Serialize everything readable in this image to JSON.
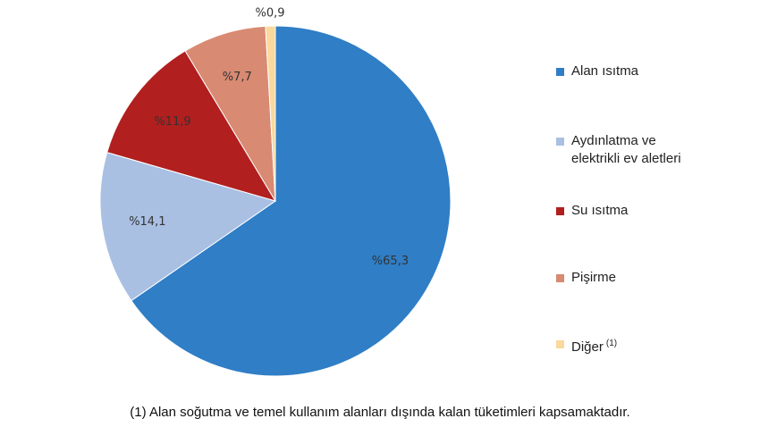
{
  "chart_data": {
    "type": "pie",
    "categories": [
      "Alan ısıtma",
      "Aydınlatma ve elektrikli ev aletleri",
      "Su ısıtma",
      "Pişirme",
      "Diğer"
    ],
    "values": [
      65.3,
      14.1,
      11.9,
      7.7,
      0.9
    ],
    "value_labels": [
      "%65,3",
      "%14,1",
      "%11,9",
      "%7,7",
      "%0,9"
    ],
    "colors": [
      "#2f7ec6",
      "#a9c0e3",
      "#b11f1f",
      "#d98a72",
      "#fbd89c"
    ],
    "footnote_marker": "(1)",
    "footnote": "(1) Alan soğutma ve temel kullanım alanları dışında kalan tüketimleri kapsamaktadır.",
    "legend": "right"
  }
}
